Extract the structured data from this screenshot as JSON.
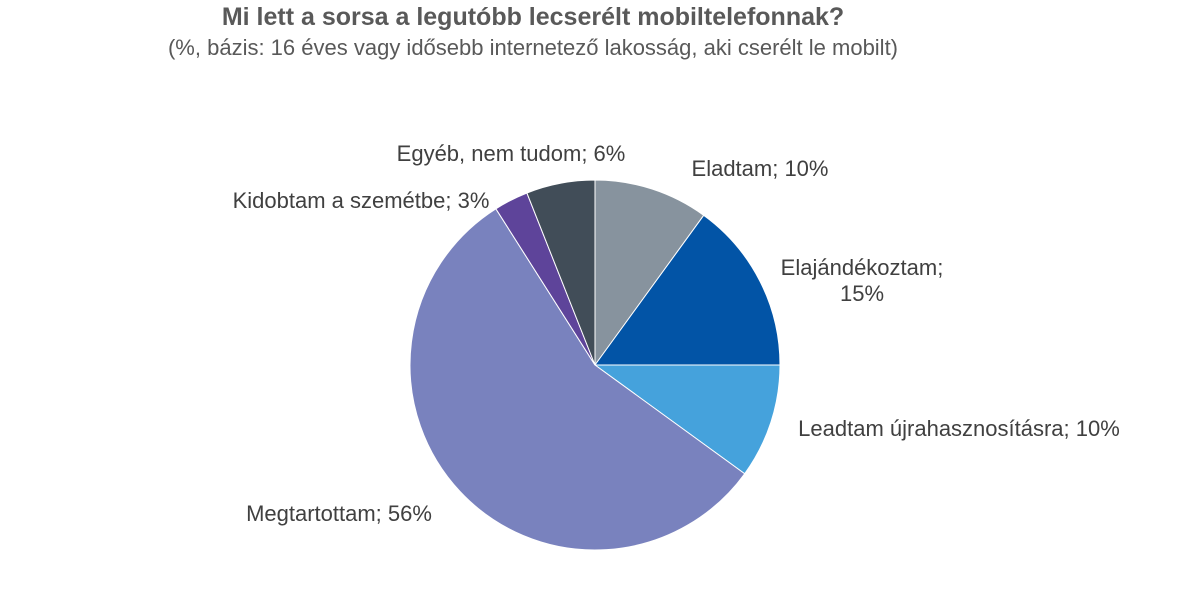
{
  "chart_data": {
    "type": "pie",
    "title": "Mi lett a sorsa a legutóbb lecserélt mobiltelefonnak?",
    "subtitle": "(%, bázis: 16 éves vagy idősebb internetező lakosság, aki cserélt le mobilt)",
    "slices": [
      {
        "name": "Eladtam",
        "value": 10,
        "label": [
          "Eladtam; 10%"
        ],
        "color": "#87939e"
      },
      {
        "name": "Elajándékoztam",
        "value": 15,
        "label": [
          "Elajándékoztam;",
          "15%"
        ],
        "color": "#0254a6"
      },
      {
        "name": "Leadtam újrahasznosításra",
        "value": 10,
        "label": [
          "Leadtam újrahasznosításra; 10%"
        ],
        "color": "#45a2dc"
      },
      {
        "name": "Megtartottam",
        "value": 56,
        "label": [
          "Megtartottam; 56%"
        ],
        "color": "#7982be"
      },
      {
        "name": "Kidobtam a szemétbe",
        "value": 3,
        "label": [
          "Kidobtam a szemétbe; 3%"
        ],
        "color": "#5e449a"
      },
      {
        "name": "Egyéb, nem tudom",
        "value": 6,
        "label": [
          "Egyéb, nem tudom; 6%"
        ],
        "color": "#414d58"
      }
    ],
    "start_angle": "12 o'clock",
    "direction": "clockwise",
    "legend": "none (labels beside slices)"
  }
}
